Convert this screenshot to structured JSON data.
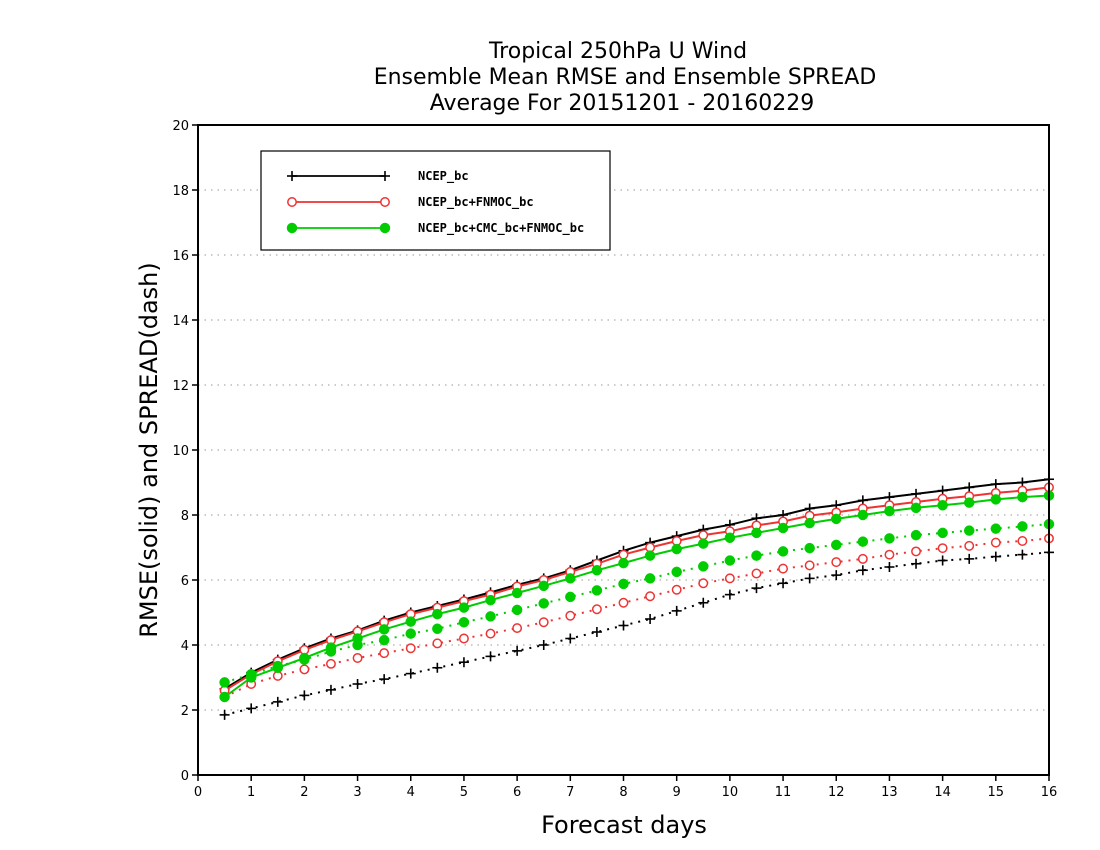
{
  "chart_data": {
    "type": "line",
    "title": [
      "Tropical 250hPa U Wind",
      "Ensemble Mean RMSE and Ensemble SPREAD",
      "Average For 20151201 - 20160229"
    ],
    "xlabel": "Forecast days",
    "ylabel": "RMSE(solid) and SPREAD(dash)",
    "xlim": [
      0,
      16
    ],
    "ylim": [
      0,
      20
    ],
    "x_ticks": [
      0,
      1,
      2,
      3,
      4,
      5,
      6,
      7,
      8,
      9,
      10,
      11,
      12,
      13,
      14,
      15,
      16
    ],
    "y_ticks": [
      0,
      2,
      4,
      6,
      8,
      10,
      12,
      14,
      16,
      18,
      20
    ],
    "grid": "horizontal dotted",
    "legend_placement": "top-left",
    "x": [
      0.5,
      1,
      1.5,
      2,
      2.5,
      3,
      3.5,
      4,
      4.5,
      5,
      5.5,
      6,
      6.5,
      7,
      7.5,
      8,
      8.5,
      9,
      9.5,
      10,
      10.5,
      11,
      11.5,
      12,
      12.5,
      13,
      13.5,
      14,
      14.5,
      15,
      15.5,
      16
    ],
    "series": [
      {
        "name": "NCEP_bc",
        "color": "#000000",
        "marker": "plus",
        "rmse": [
          2.65,
          3.15,
          3.55,
          3.9,
          4.2,
          4.45,
          4.75,
          5.0,
          5.2,
          5.4,
          5.62,
          5.85,
          6.05,
          6.3,
          6.6,
          6.9,
          7.15,
          7.35,
          7.55,
          7.7,
          7.9,
          8.0,
          8.2,
          8.3,
          8.45,
          8.55,
          8.65,
          8.75,
          8.85,
          8.95,
          9.0,
          9.1
        ],
        "spread": [
          1.85,
          2.05,
          2.25,
          2.45,
          2.62,
          2.8,
          2.95,
          3.12,
          3.3,
          3.47,
          3.65,
          3.82,
          4.0,
          4.2,
          4.4,
          4.6,
          4.8,
          5.05,
          5.3,
          5.55,
          5.75,
          5.9,
          6.05,
          6.15,
          6.3,
          6.4,
          6.5,
          6.6,
          6.65,
          6.72,
          6.78,
          6.85
        ]
      },
      {
        "name": "NCEP_bc+FNMOC_bc",
        "color": "#ee3333",
        "marker": "open-circle",
        "rmse": [
          2.6,
          3.1,
          3.5,
          3.85,
          4.15,
          4.42,
          4.7,
          4.95,
          5.15,
          5.35,
          5.55,
          5.8,
          6.0,
          6.25,
          6.5,
          6.78,
          7.0,
          7.2,
          7.38,
          7.5,
          7.68,
          7.8,
          7.98,
          8.08,
          8.2,
          8.3,
          8.4,
          8.5,
          8.58,
          8.68,
          8.75,
          8.85
        ],
        "spread": [
          2.4,
          2.8,
          3.05,
          3.25,
          3.42,
          3.6,
          3.75,
          3.9,
          4.05,
          4.2,
          4.35,
          4.52,
          4.7,
          4.9,
          5.1,
          5.3,
          5.5,
          5.7,
          5.9,
          6.05,
          6.2,
          6.35,
          6.45,
          6.55,
          6.65,
          6.78,
          6.88,
          6.98,
          7.05,
          7.15,
          7.2,
          7.28
        ]
      },
      {
        "name": "NCEP_bc+CMC_bc+FNMOC_bc",
        "color": "#00cc00",
        "marker": "filled-circle",
        "rmse": [
          2.4,
          3.0,
          3.3,
          3.6,
          3.92,
          4.2,
          4.48,
          4.72,
          4.95,
          5.15,
          5.38,
          5.6,
          5.82,
          6.05,
          6.3,
          6.52,
          6.75,
          6.95,
          7.12,
          7.3,
          7.45,
          7.6,
          7.75,
          7.88,
          8.0,
          8.12,
          8.22,
          8.3,
          8.38,
          8.48,
          8.55,
          8.6
        ],
        "spread": [
          2.85,
          3.1,
          3.35,
          3.55,
          3.8,
          4.0,
          4.15,
          4.35,
          4.5,
          4.7,
          4.88,
          5.08,
          5.28,
          5.48,
          5.68,
          5.88,
          6.05,
          6.25,
          6.42,
          6.6,
          6.75,
          6.88,
          6.98,
          7.08,
          7.18,
          7.28,
          7.38,
          7.45,
          7.52,
          7.58,
          7.65,
          7.72
        ]
      }
    ]
  }
}
